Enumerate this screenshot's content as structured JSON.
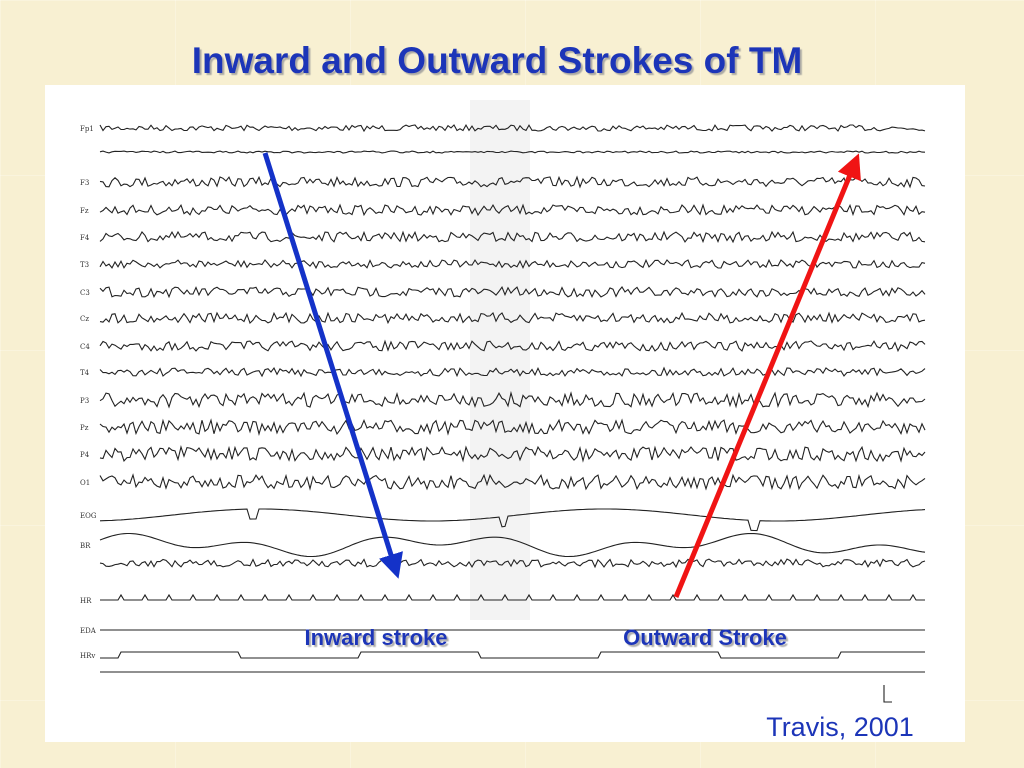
{
  "title": "Inward and Outward Strokes of TM",
  "channels": [
    "Fp1",
    "F3",
    "Fz",
    "F4",
    "T3",
    "C3",
    "Cz",
    "C4",
    "T4",
    "P3",
    "Pz",
    "P4",
    "O1",
    "EOG",
    "BR",
    "HR",
    "EDA",
    "HRv"
  ],
  "annotations": {
    "inward": "Inward stroke",
    "outward": "Outward Stroke"
  },
  "citation": "Travis, 2001"
}
